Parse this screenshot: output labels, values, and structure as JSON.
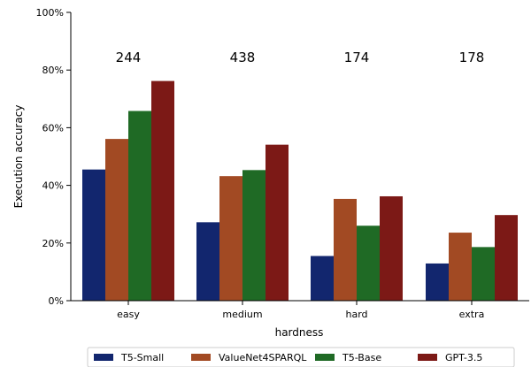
{
  "chart_data": {
    "type": "bar",
    "xlabel": "hardness",
    "ylabel": "Execution accuracy",
    "ylim": [
      0,
      100
    ],
    "yticks": [
      "0%",
      "20%",
      "40%",
      "60%",
      "80%",
      "100%"
    ],
    "ytick_values": [
      0,
      20,
      40,
      60,
      80,
      100
    ],
    "categories": [
      "easy",
      "medium",
      "hard",
      "extra"
    ],
    "group_counts": [
      "244",
      "438",
      "174",
      "178"
    ],
    "series": [
      {
        "name": "T5-Small",
        "color": "#12266e",
        "values": [
          45.5,
          27.2,
          15.5,
          12.9
        ]
      },
      {
        "name": "ValueNet4SPARQL",
        "color": "#a24a23",
        "values": [
          56.1,
          43.2,
          35.3,
          23.6
        ]
      },
      {
        "name": "T5-Base",
        "color": "#1f6a25",
        "values": [
          65.8,
          45.3,
          26.0,
          18.6
        ]
      },
      {
        "name": "GPT-3.5",
        "color": "#7c1916",
        "values": [
          76.2,
          54.1,
          36.2,
          29.7
        ]
      }
    ],
    "legend_position": "bottom-center",
    "grid": false
  }
}
